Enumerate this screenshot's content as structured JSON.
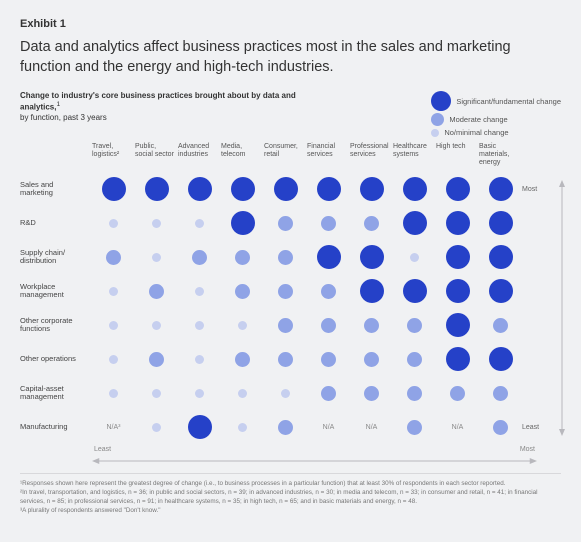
{
  "exhibit_label": "Exhibit 1",
  "title": "Data and analytics affect business practices most in the sales and marketing function and the energy and high-tech industries.",
  "subhead_bold": "Change to industry's core business practices brought about by data and analytics,",
  "subhead_sup": "1",
  "subhead_rest": "by function, past 3 years",
  "legend": {
    "items": [
      {
        "label": "Significant/fundamental change",
        "size": 20,
        "color": "#2541c8"
      },
      {
        "label": "Moderate change",
        "size": 13,
        "color": "#8fa3e6"
      },
      {
        "label": "No/minimal change",
        "size": 8,
        "color": "#c6cfef"
      }
    ]
  },
  "colors": {
    "sig": "#2541c8",
    "mod": "#8fa3e6",
    "min": "#c6cfef",
    "axis": "#b8b8bd"
  },
  "sizes": {
    "sig": 24,
    "mod": 15,
    "min": 9
  },
  "columns": [
    "Travel, logistics²",
    "Public, social sector",
    "Advanced industries",
    "Media, telecom",
    "Consumer, retail",
    "Financial services",
    "Professional services",
    "Healthcare systems",
    "High tech",
    "Basic materials, energy"
  ],
  "rows": [
    {
      "label": "Sales and marketing",
      "cells": [
        "sig",
        "sig",
        "sig",
        "sig",
        "sig",
        "sig",
        "sig",
        "sig",
        "sig",
        "sig"
      ],
      "side": "Most"
    },
    {
      "label": "R&D",
      "cells": [
        "min",
        "min",
        "min",
        "sig",
        "mod",
        "mod",
        "mod",
        "sig",
        "sig",
        "sig"
      ],
      "side": ""
    },
    {
      "label": "Supply chain/ distribution",
      "cells": [
        "mod",
        "min",
        "mod",
        "mod",
        "mod",
        "sig",
        "sig",
        "min",
        "sig",
        "sig"
      ],
      "side": ""
    },
    {
      "label": "Workplace management",
      "cells": [
        "min",
        "mod",
        "min",
        "mod",
        "mod",
        "mod",
        "sig",
        "sig",
        "sig",
        "sig"
      ],
      "side": ""
    },
    {
      "label": "Other corporate functions",
      "cells": [
        "min",
        "min",
        "min",
        "min",
        "mod",
        "mod",
        "mod",
        "mod",
        "sig",
        "mod"
      ],
      "side": ""
    },
    {
      "label": "Other operations",
      "cells": [
        "min",
        "mod",
        "min",
        "mod",
        "mod",
        "mod",
        "mod",
        "mod",
        "sig",
        "sig"
      ],
      "side": ""
    },
    {
      "label": "Capital-asset management",
      "cells": [
        "min",
        "min",
        "min",
        "min",
        "min",
        "mod",
        "mod",
        "mod",
        "mod",
        "mod"
      ],
      "side": ""
    },
    {
      "label": "Manufacturing",
      "cells": [
        "na",
        "min",
        "sig",
        "min",
        "mod",
        "na",
        "na",
        "mod",
        "na",
        "mod"
      ],
      "side": "Least"
    }
  ],
  "na_text": "N/A³",
  "na_plain": "N/A",
  "axis": {
    "left": "Least",
    "right": "Most"
  },
  "rhs_arrow_top": "Most",
  "rhs_arrow_bottom": "Least",
  "footnotes": [
    "¹Responses shown here represent the greatest degree of change (i.e., to business processes in a particular function) that at least 30% of respondents in each sector reported.",
    "²In travel, transportation, and logistics, n = 36; in public and social sectors, n = 39; in advanced industries, n = 30; in media and telecom, n = 33; in consumer and retail, n = 41; in financial services, n = 85; in professional services, n = 91; in healthcare systems, n = 35; in high tech, n = 65; and in basic materials and energy, n = 48.",
    "³A plurality of respondents answered \"Don't know.\""
  ]
}
